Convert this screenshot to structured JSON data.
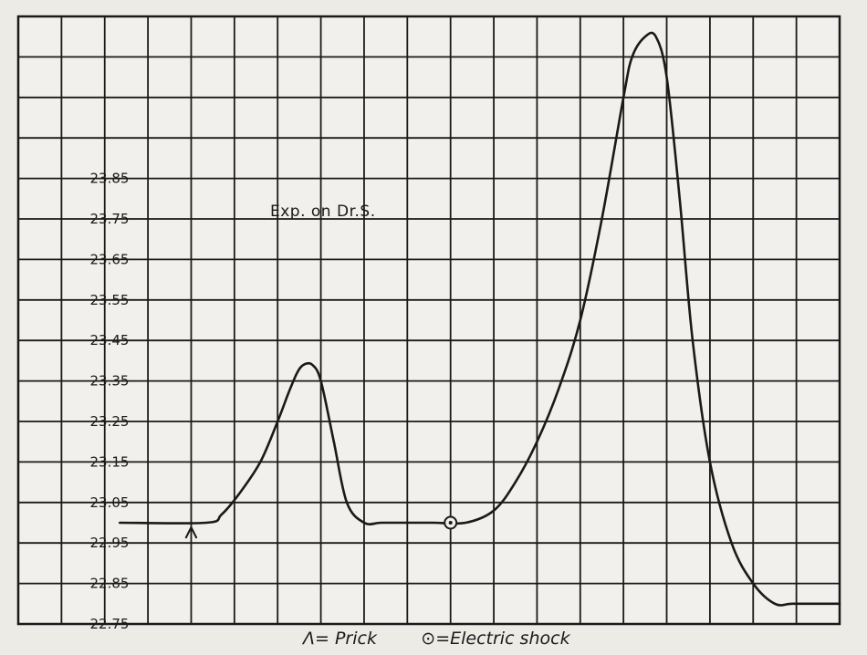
{
  "chart_data": {
    "type": "line",
    "title": "Exp. on Dr.S.",
    "xlabel": "",
    "ylabel": "",
    "ylim": [
      22.75,
      24.25
    ],
    "y_ticks": [
      "23.85",
      "23.75",
      "23.65",
      "23.55",
      "23.45",
      "23.35",
      "23.25",
      "23.15",
      "23.05",
      "22.95",
      "22.85",
      "22.75"
    ],
    "y_tick_values": [
      23.85,
      23.75,
      23.65,
      23.55,
      23.45,
      23.35,
      23.25,
      23.15,
      23.05,
      22.95,
      22.85,
      22.75
    ],
    "grid": true,
    "x_divisions": 19,
    "xlim": [
      0,
      19
    ],
    "series": [
      {
        "x": [
          2.35,
          4.35,
          4.7,
          5.1,
          5.6,
          6.0,
          6.25,
          6.45,
          6.6,
          6.8,
          7.0,
          7.3,
          7.6,
          8.0,
          8.4,
          9.0,
          9.6,
          10.35,
          11.0,
          11.5,
          12.0,
          12.5,
          13.0,
          13.5,
          14.0,
          14.2,
          14.5,
          14.75,
          15.0,
          15.3,
          15.6,
          16.0,
          16.5,
          17.0,
          17.5,
          17.9,
          18.5,
          19.0
        ],
        "y": [
          23.0,
          23.0,
          23.02,
          23.07,
          23.15,
          23.25,
          23.32,
          23.37,
          23.39,
          23.39,
          23.35,
          23.2,
          23.05,
          23.0,
          23.0,
          23.0,
          23.0,
          23.0,
          23.03,
          23.1,
          23.2,
          23.33,
          23.5,
          23.75,
          24.05,
          24.15,
          24.2,
          24.2,
          24.1,
          23.8,
          23.45,
          23.15,
          22.95,
          22.85,
          22.8,
          22.8,
          22.8,
          22.8
        ],
        "color": "#1a1a1a"
      }
    ],
    "annotations": [
      {
        "symbol": "Λ",
        "meaning": "Prick",
        "x": 4.0,
        "y": 23.0
      },
      {
        "symbol": "⊙",
        "meaning": "Electric shock",
        "x": 10.0,
        "y": 23.0
      }
    ],
    "legend_text": "Λ= Prick        ⊙=Electric shock"
  }
}
